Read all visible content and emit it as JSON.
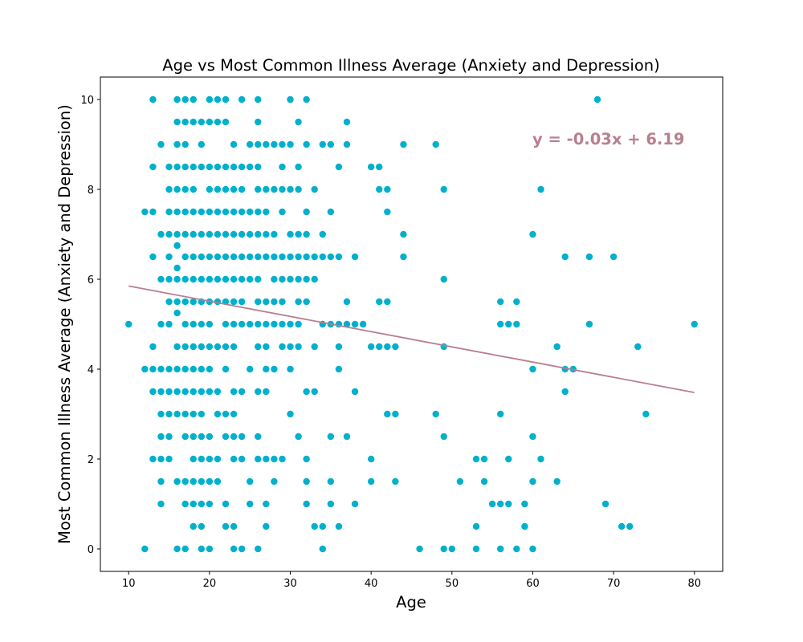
{
  "chart_data": {
    "type": "scatter",
    "title": "Age vs Most Common Illness Average (Anxiety and Depression)",
    "xlabel": "Age",
    "ylabel": "Most Common Illness Average (Anxiety and Depression)",
    "xlim": [
      6.5,
      83.5
    ],
    "ylim": [
      -0.5,
      10.5
    ],
    "x_ticks": [
      10,
      20,
      30,
      40,
      50,
      60,
      70,
      80
    ],
    "y_ticks": [
      0,
      2,
      4,
      6,
      8,
      10
    ],
    "grid": false,
    "point_color": "#00b0cc",
    "regression": {
      "equation": "y = -0.03x + 6.19",
      "x_range": [
        10,
        80
      ],
      "y_at_x_min": 5.85,
      "y_at_x_max": 3.48,
      "color": "#b87f8e"
    },
    "points": [
      [
        13,
        10
      ],
      [
        16,
        10
      ],
      [
        17,
        10
      ],
      [
        18,
        10
      ],
      [
        20,
        10
      ],
      [
        21,
        10
      ],
      [
        22,
        10
      ],
      [
        24,
        10
      ],
      [
        26,
        10
      ],
      [
        30,
        10
      ],
      [
        32,
        10
      ],
      [
        68,
        10
      ],
      [
        16,
        9.5
      ],
      [
        17,
        9.5
      ],
      [
        18,
        9.5
      ],
      [
        19,
        9.5
      ],
      [
        20,
        9.5
      ],
      [
        21,
        9.5
      ],
      [
        22,
        9.5
      ],
      [
        26,
        9.5
      ],
      [
        31,
        9.5
      ],
      [
        37,
        9.5
      ],
      [
        14,
        9
      ],
      [
        16,
        9
      ],
      [
        17,
        9
      ],
      [
        19,
        9
      ],
      [
        23,
        9
      ],
      [
        25,
        9
      ],
      [
        26,
        9
      ],
      [
        27,
        9
      ],
      [
        28,
        9
      ],
      [
        29,
        9
      ],
      [
        30,
        9
      ],
      [
        32,
        9
      ],
      [
        34,
        9
      ],
      [
        35,
        9
      ],
      [
        37,
        9
      ],
      [
        44,
        9
      ],
      [
        48,
        9
      ],
      [
        13,
        8.5
      ],
      [
        15,
        8.5
      ],
      [
        16,
        8.5
      ],
      [
        17,
        8.5
      ],
      [
        18,
        8.5
      ],
      [
        19,
        8.5
      ],
      [
        20,
        8.5
      ],
      [
        21,
        8.5
      ],
      [
        22,
        8.5
      ],
      [
        23,
        8.5
      ],
      [
        24,
        8.5
      ],
      [
        25,
        8.5
      ],
      [
        26,
        8.5
      ],
      [
        29,
        8.5
      ],
      [
        31,
        8.5
      ],
      [
        36,
        8.5
      ],
      [
        40,
        8.5
      ],
      [
        41,
        8.5
      ],
      [
        15,
        8
      ],
      [
        16,
        8
      ],
      [
        17,
        8
      ],
      [
        18,
        8
      ],
      [
        20,
        8
      ],
      [
        21,
        8
      ],
      [
        22,
        8
      ],
      [
        23,
        8
      ],
      [
        24,
        8
      ],
      [
        26,
        8
      ],
      [
        27,
        8
      ],
      [
        28,
        8
      ],
      [
        29,
        8
      ],
      [
        30,
        8
      ],
      [
        31,
        8
      ],
      [
        33,
        8
      ],
      [
        41,
        8
      ],
      [
        42,
        8
      ],
      [
        49,
        8
      ],
      [
        61,
        8
      ],
      [
        12,
        7.5
      ],
      [
        13,
        7.5
      ],
      [
        15,
        7.5
      ],
      [
        16,
        7.5
      ],
      [
        17,
        7.5
      ],
      [
        18,
        7.5
      ],
      [
        19,
        7.5
      ],
      [
        20,
        7.5
      ],
      [
        21,
        7.5
      ],
      [
        22,
        7.5
      ],
      [
        23,
        7.5
      ],
      [
        24,
        7.5
      ],
      [
        25,
        7.5
      ],
      [
        26,
        7.5
      ],
      [
        27,
        7.5
      ],
      [
        29,
        7.5
      ],
      [
        32,
        7.5
      ],
      [
        35,
        7.5
      ],
      [
        42,
        7.5
      ],
      [
        14,
        7
      ],
      [
        15,
        7
      ],
      [
        16,
        7
      ],
      [
        17,
        7
      ],
      [
        18,
        7
      ],
      [
        19,
        7
      ],
      [
        20,
        7
      ],
      [
        21,
        7
      ],
      [
        22,
        7
      ],
      [
        23,
        7
      ],
      [
        24,
        7
      ],
      [
        25,
        7
      ],
      [
        26,
        7
      ],
      [
        27,
        7
      ],
      [
        28,
        7
      ],
      [
        30,
        7
      ],
      [
        31,
        7
      ],
      [
        32,
        7
      ],
      [
        34,
        7
      ],
      [
        44,
        7
      ],
      [
        60,
        7
      ],
      [
        16,
        6.75
      ],
      [
        13,
        6.5
      ],
      [
        15,
        6.5
      ],
      [
        17,
        6.5
      ],
      [
        18,
        6.5
      ],
      [
        19,
        6.5
      ],
      [
        20,
        6.5
      ],
      [
        21,
        6.5
      ],
      [
        22,
        6.5
      ],
      [
        23,
        6.5
      ],
      [
        24,
        6.5
      ],
      [
        25,
        6.5
      ],
      [
        26,
        6.5
      ],
      [
        27,
        6.5
      ],
      [
        28,
        6.5
      ],
      [
        29,
        6.5
      ],
      [
        30,
        6.5
      ],
      [
        31,
        6.5
      ],
      [
        32,
        6.5
      ],
      [
        33,
        6.5
      ],
      [
        34,
        6.5
      ],
      [
        35,
        6.5
      ],
      [
        36,
        6.5
      ],
      [
        38,
        6.5
      ],
      [
        44,
        6.5
      ],
      [
        64,
        6.5
      ],
      [
        67,
        6.5
      ],
      [
        70,
        6.5
      ],
      [
        16,
        6.25
      ],
      [
        14,
        6
      ],
      [
        15,
        6
      ],
      [
        16,
        6
      ],
      [
        17,
        6
      ],
      [
        18,
        6
      ],
      [
        19,
        6
      ],
      [
        20,
        6
      ],
      [
        21,
        6
      ],
      [
        22,
        6
      ],
      [
        23,
        6
      ],
      [
        24,
        6
      ],
      [
        25,
        6
      ],
      [
        26,
        6
      ],
      [
        28,
        6
      ],
      [
        29,
        6
      ],
      [
        30,
        6
      ],
      [
        31,
        6
      ],
      [
        32,
        6
      ],
      [
        33,
        6
      ],
      [
        49,
        6
      ],
      [
        15,
        5.5
      ],
      [
        16,
        5.5
      ],
      [
        17,
        5.5
      ],
      [
        18,
        5.5
      ],
      [
        19,
        5.5
      ],
      [
        20,
        5.5
      ],
      [
        21,
        5.5
      ],
      [
        22,
        5.5
      ],
      [
        23,
        5.5
      ],
      [
        24,
        5.5
      ],
      [
        26,
        5.5
      ],
      [
        27,
        5.5
      ],
      [
        28,
        5.5
      ],
      [
        29,
        5.5
      ],
      [
        31,
        5.5
      ],
      [
        32,
        5.5
      ],
      [
        37,
        5.5
      ],
      [
        41,
        5.5
      ],
      [
        42,
        5.5
      ],
      [
        56,
        5.5
      ],
      [
        58,
        5.5
      ],
      [
        16,
        5.25
      ],
      [
        10,
        5
      ],
      [
        14,
        5
      ],
      [
        15,
        5
      ],
      [
        17,
        5
      ],
      [
        18,
        5
      ],
      [
        19,
        5
      ],
      [
        20,
        5
      ],
      [
        22,
        5
      ],
      [
        23,
        5
      ],
      [
        24,
        5
      ],
      [
        25,
        5
      ],
      [
        26,
        5
      ],
      [
        27,
        5
      ],
      [
        28,
        5
      ],
      [
        29,
        5
      ],
      [
        30,
        5
      ],
      [
        31,
        5
      ],
      [
        34,
        5
      ],
      [
        35,
        5
      ],
      [
        36,
        5
      ],
      [
        37,
        5
      ],
      [
        38,
        5
      ],
      [
        39,
        5
      ],
      [
        56,
        5
      ],
      [
        57,
        5
      ],
      [
        58,
        5
      ],
      [
        67,
        5
      ],
      [
        80,
        5
      ],
      [
        13,
        4.5
      ],
      [
        16,
        4.5
      ],
      [
        17,
        4.5
      ],
      [
        18,
        4.5
      ],
      [
        19,
        4.5
      ],
      [
        20,
        4.5
      ],
      [
        21,
        4.5
      ],
      [
        22,
        4.5
      ],
      [
        23,
        4.5
      ],
      [
        26,
        4.5
      ],
      [
        27,
        4.5
      ],
      [
        29,
        4.5
      ],
      [
        30,
        4.5
      ],
      [
        31,
        4.5
      ],
      [
        33,
        4.5
      ],
      [
        36,
        4.5
      ],
      [
        40,
        4.5
      ],
      [
        41,
        4.5
      ],
      [
        42,
        4.5
      ],
      [
        43,
        4.5
      ],
      [
        49,
        4.5
      ],
      [
        63,
        4.5
      ],
      [
        73,
        4.5
      ],
      [
        12,
        4
      ],
      [
        13,
        4
      ],
      [
        14,
        4
      ],
      [
        15,
        4
      ],
      [
        16,
        4
      ],
      [
        17,
        4
      ],
      [
        18,
        4
      ],
      [
        19,
        4
      ],
      [
        20,
        4
      ],
      [
        22,
        4
      ],
      [
        25,
        4
      ],
      [
        27,
        4
      ],
      [
        28,
        4
      ],
      [
        30,
        4
      ],
      [
        36,
        4
      ],
      [
        60,
        4
      ],
      [
        64,
        4
      ],
      [
        65,
        4
      ],
      [
        13,
        3.5
      ],
      [
        14,
        3.5
      ],
      [
        15,
        3.5
      ],
      [
        16,
        3.5
      ],
      [
        17,
        3.5
      ],
      [
        18,
        3.5
      ],
      [
        19,
        3.5
      ],
      [
        20,
        3.5
      ],
      [
        21,
        3.5
      ],
      [
        23,
        3.5
      ],
      [
        24,
        3.5
      ],
      [
        26,
        3.5
      ],
      [
        27,
        3.5
      ],
      [
        32,
        3.5
      ],
      [
        33,
        3.5
      ],
      [
        38,
        3.5
      ],
      [
        64,
        3.5
      ],
      [
        14,
        3
      ],
      [
        15,
        3
      ],
      [
        16,
        3
      ],
      [
        17,
        3
      ],
      [
        18,
        3
      ],
      [
        19,
        3
      ],
      [
        21,
        3
      ],
      [
        22,
        3
      ],
      [
        23,
        3
      ],
      [
        30,
        3
      ],
      [
        42,
        3
      ],
      [
        43,
        3
      ],
      [
        48,
        3
      ],
      [
        56,
        3
      ],
      [
        74,
        3
      ],
      [
        14,
        2.5
      ],
      [
        15,
        2.5
      ],
      [
        17,
        2.5
      ],
      [
        18,
        2.5
      ],
      [
        19,
        2.5
      ],
      [
        20,
        2.5
      ],
      [
        22,
        2.5
      ],
      [
        23,
        2.5
      ],
      [
        24,
        2.5
      ],
      [
        26,
        2.5
      ],
      [
        31,
        2.5
      ],
      [
        35,
        2.5
      ],
      [
        37,
        2.5
      ],
      [
        49,
        2.5
      ],
      [
        60,
        2.5
      ],
      [
        13,
        2
      ],
      [
        14,
        2
      ],
      [
        15,
        2
      ],
      [
        18,
        2
      ],
      [
        19,
        2
      ],
      [
        20,
        2
      ],
      [
        21,
        2
      ],
      [
        23,
        2
      ],
      [
        24,
        2
      ],
      [
        26,
        2
      ],
      [
        27,
        2
      ],
      [
        28,
        2
      ],
      [
        29,
        2
      ],
      [
        32,
        2
      ],
      [
        40,
        2
      ],
      [
        53,
        2
      ],
      [
        54,
        2
      ],
      [
        57,
        2
      ],
      [
        61,
        2
      ],
      [
        14,
        1.5
      ],
      [
        16,
        1.5
      ],
      [
        17,
        1.5
      ],
      [
        18,
        1.5
      ],
      [
        19,
        1.5
      ],
      [
        20,
        1.5
      ],
      [
        21,
        1.5
      ],
      [
        25,
        1.5
      ],
      [
        28,
        1.5
      ],
      [
        32,
        1.5
      ],
      [
        35,
        1.5
      ],
      [
        40,
        1.5
      ],
      [
        43,
        1.5
      ],
      [
        51,
        1.5
      ],
      [
        54,
        1.5
      ],
      [
        60,
        1.5
      ],
      [
        63,
        1.5
      ],
      [
        14,
        1
      ],
      [
        17,
        1
      ],
      [
        18,
        1
      ],
      [
        19,
        1
      ],
      [
        20,
        1
      ],
      [
        22,
        1
      ],
      [
        25,
        1
      ],
      [
        27,
        1
      ],
      [
        32,
        1
      ],
      [
        35,
        1
      ],
      [
        38,
        1
      ],
      [
        55,
        1
      ],
      [
        56,
        1
      ],
      [
        57,
        1
      ],
      [
        59,
        1
      ],
      [
        69,
        1
      ],
      [
        18,
        0.5
      ],
      [
        19,
        0.5
      ],
      [
        22,
        0.5
      ],
      [
        23,
        0.5
      ],
      [
        27,
        0.5
      ],
      [
        33,
        0.5
      ],
      [
        34,
        0.5
      ],
      [
        36,
        0.5
      ],
      [
        53,
        0.5
      ],
      [
        59,
        0.5
      ],
      [
        71,
        0.5
      ],
      [
        72,
        0.5
      ],
      [
        12,
        0
      ],
      [
        16,
        0
      ],
      [
        17,
        0
      ],
      [
        19,
        0
      ],
      [
        20,
        0
      ],
      [
        23,
        0
      ],
      [
        24,
        0
      ],
      [
        26,
        0
      ],
      [
        34,
        0
      ],
      [
        46,
        0
      ],
      [
        49,
        0
      ],
      [
        50,
        0
      ],
      [
        53,
        0
      ],
      [
        56,
        0
      ],
      [
        58,
        0
      ],
      [
        60,
        0
      ]
    ]
  }
}
